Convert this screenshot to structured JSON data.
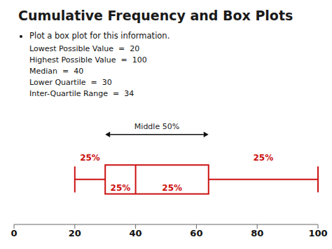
{
  "chart_data": {
    "type": "box",
    "title": "Cumulative Frequency and Box Plots",
    "subtitle": "Plot a box plot for this information.",
    "annotations": [
      "Lowest Possible Value  =  20",
      "Highest Possible Value  =  100",
      "Median  =  40",
      "Lower Quartile  =  30",
      "Inter-Quartile Range  =  34"
    ],
    "box": {
      "min": 20,
      "q1": 30,
      "median": 40,
      "q3": 64,
      "max": 100
    },
    "quartile_labels": [
      "25%",
      "25%",
      "25%",
      "25%"
    ],
    "range_label": "Middle 50%",
    "xlim": [
      0,
      100
    ],
    "xticks": [
      0,
      20,
      40,
      60,
      80,
      100
    ],
    "color": "#CC1111",
    "grid": false,
    "tick_labels": "x"
  }
}
